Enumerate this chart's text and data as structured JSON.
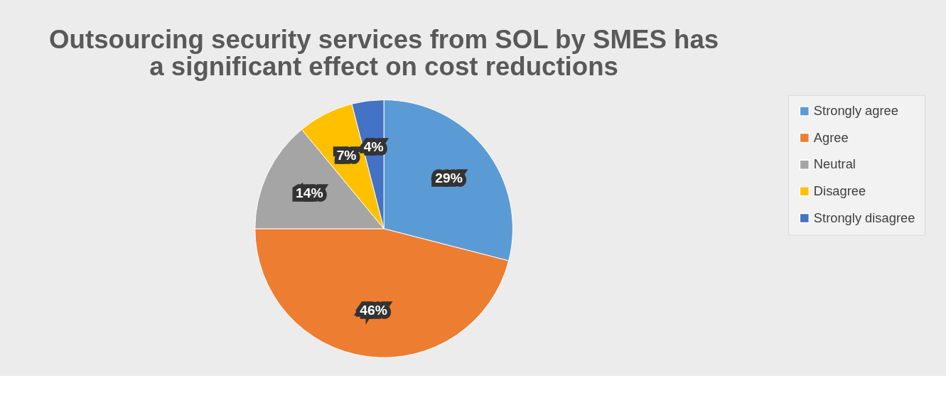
{
  "chart_data": {
    "type": "pie",
    "title": [
      "Outsourcing security services from SOL by SMES has",
      "a significant effect on cost reductions"
    ],
    "categories": [
      "Strongly agree",
      "Agree",
      "Neutral",
      "Disagree",
      "Strongly disagree"
    ],
    "values": [
      29,
      46,
      14,
      7,
      4
    ],
    "colors": [
      "#5b9bd5",
      "#ed7d31",
      "#a5a5a5",
      "#ffc000",
      "#4472c4"
    ],
    "value_labels": [
      "29%",
      "46%",
      "14%",
      "7%",
      "4%"
    ],
    "legend": "right"
  }
}
